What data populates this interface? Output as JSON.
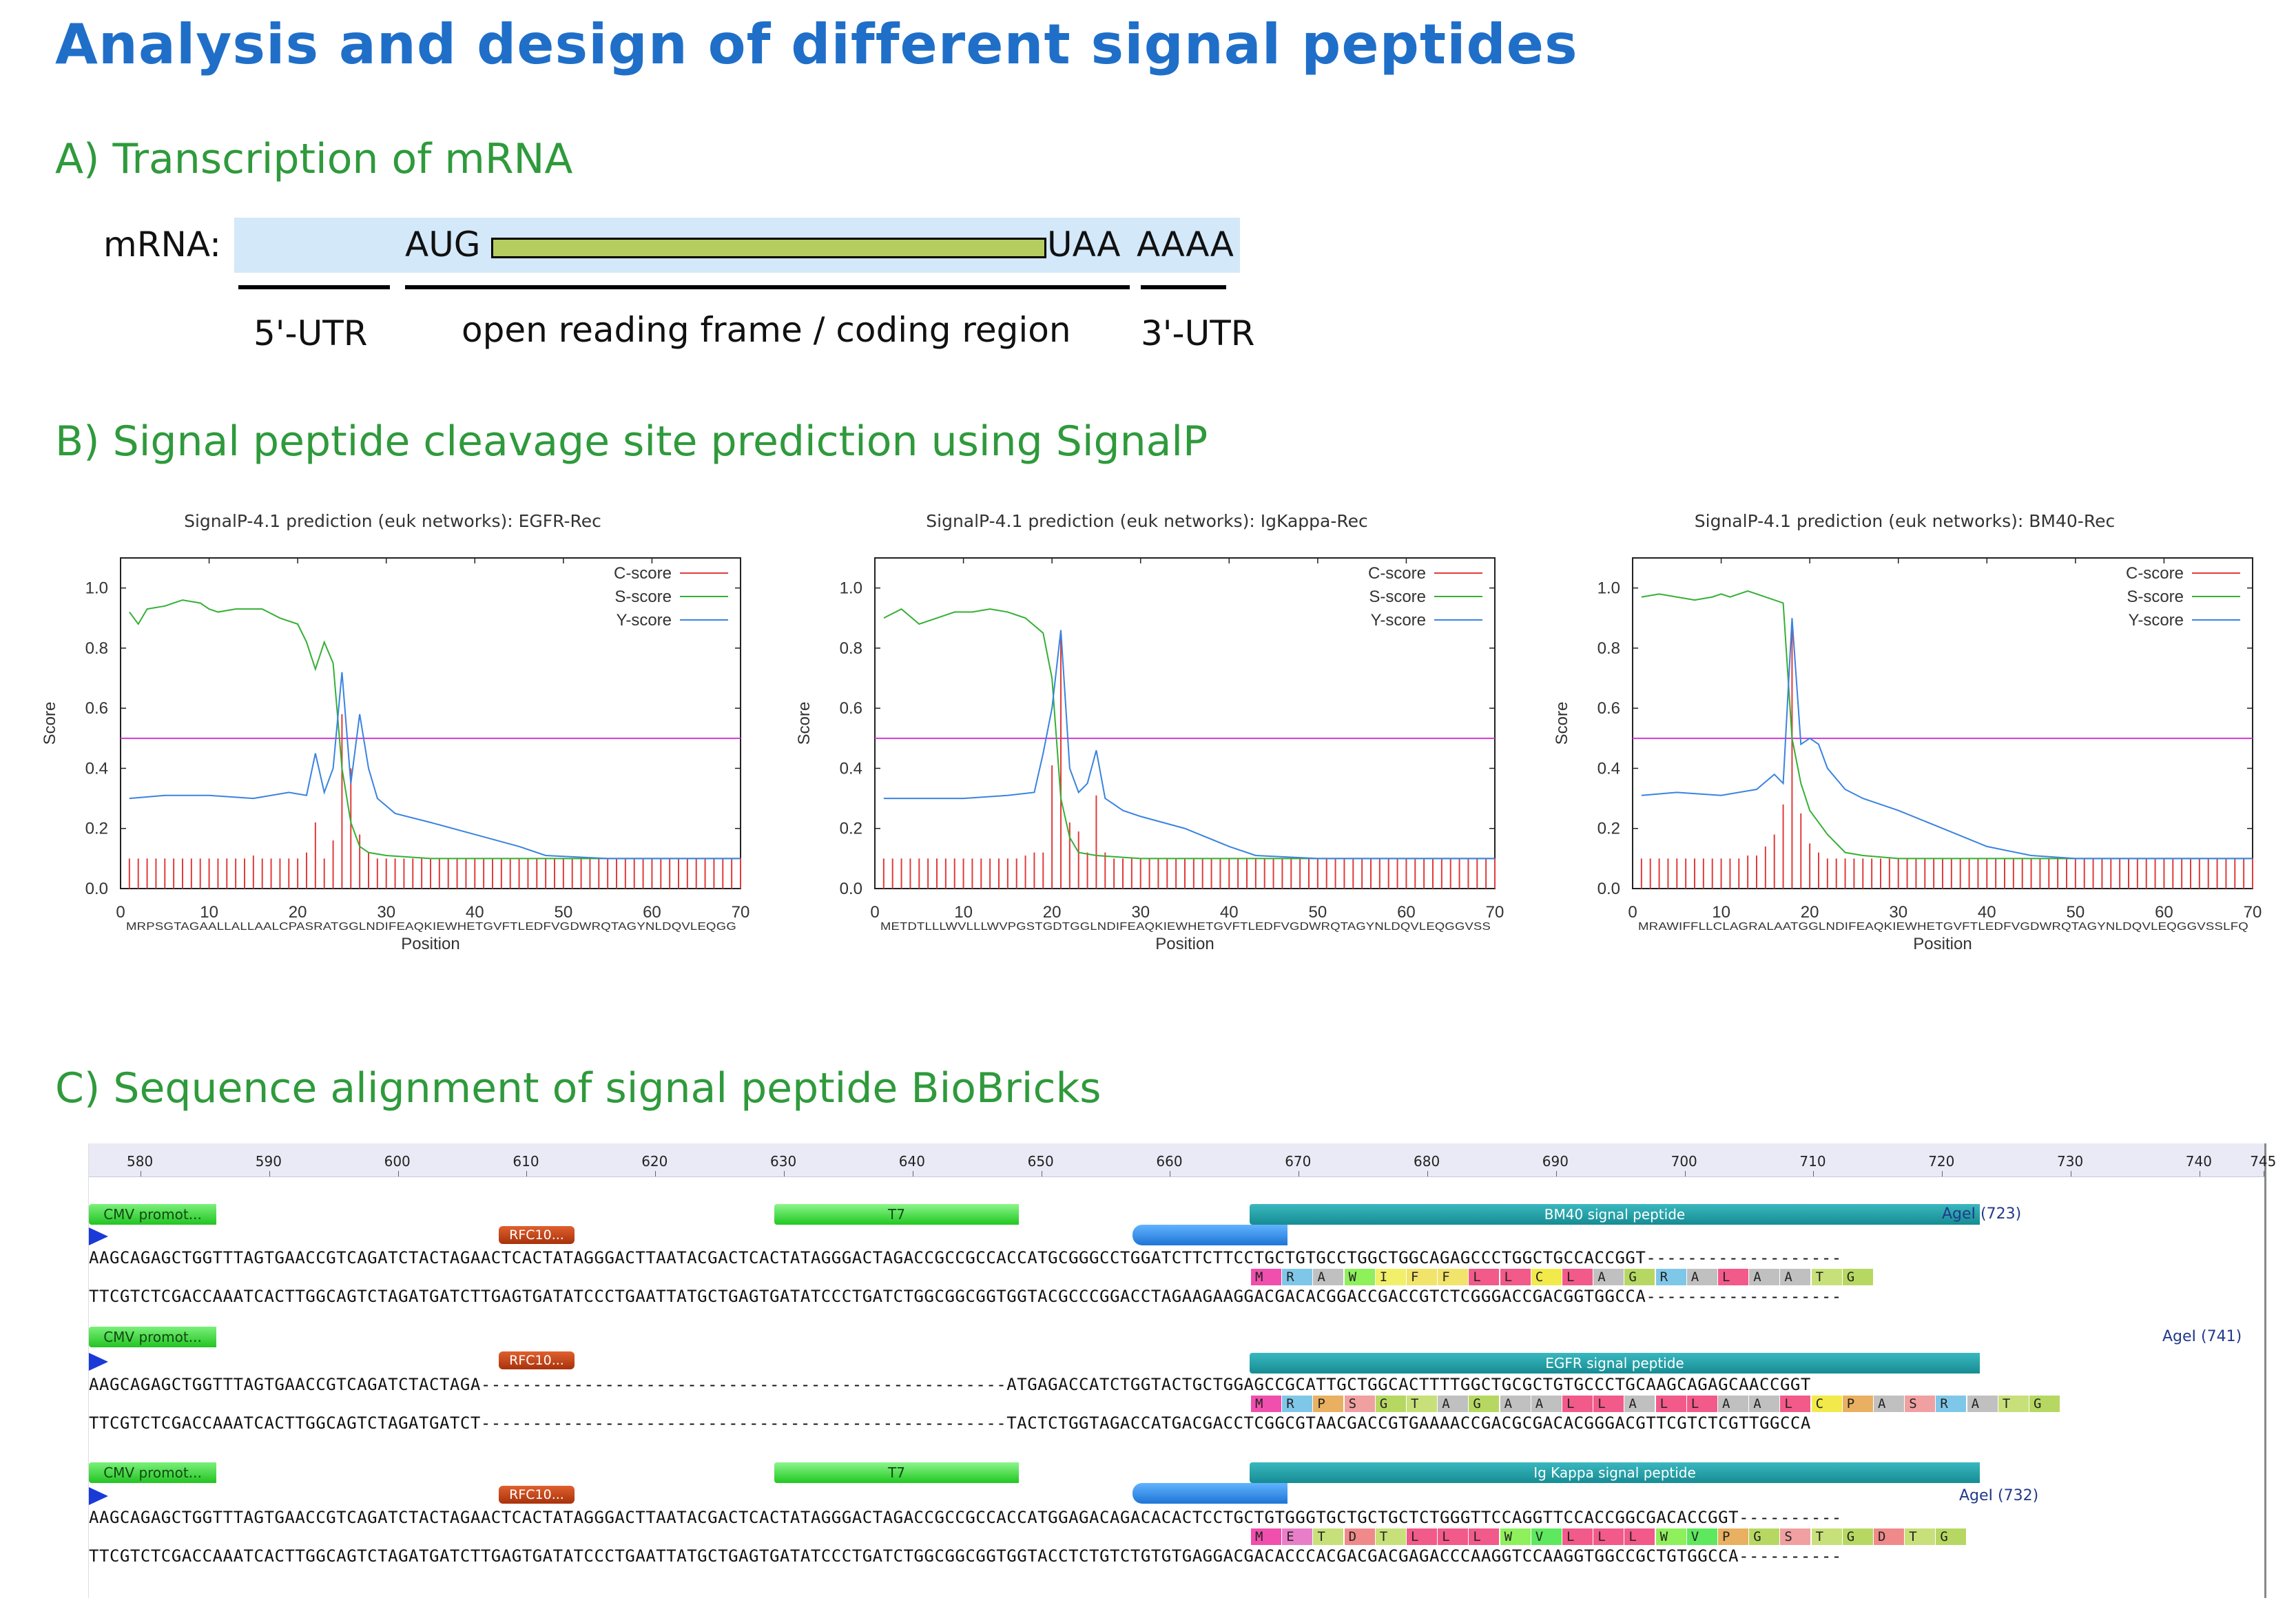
{
  "title": "Analysis and design of different signal peptides",
  "sectionA": {
    "title": "A) Transcription of mRNA",
    "mrna_label": "mRNA:",
    "start_codon": "AUG",
    "stop_codon": "UAA",
    "poly_a": "AAAA",
    "utr5": "5'-UTR",
    "orf": "open reading frame / coding region",
    "utr3": "3'-UTR"
  },
  "sectionB": {
    "title": "B) Signal peptide cleavage site prediction using SignalP"
  },
  "chart_data": [
    {
      "type": "line",
      "title": "SignalP-4.1 prediction (euk networks): EGFR-Rec",
      "xlabel": "Position",
      "ylabel": "Score",
      "xlim": [
        0,
        70
      ],
      "ylim": [
        0,
        1.1
      ],
      "xticks": [
        0,
        10,
        20,
        30,
        40,
        50,
        60,
        70
      ],
      "yticks": [
        "0.0",
        "0.2",
        "0.4",
        "0.6",
        "0.8",
        "1.0"
      ],
      "threshold": 0.5,
      "legend": [
        "C-score",
        "S-score",
        "Y-score"
      ],
      "legend_position": "top-right",
      "sequence": "MRPSGTAGAALLALLAALCPASRATGGLNDIFEAQKIEWHETGVFTLEDFVGDWRQTAGYNLDQVLEQGG",
      "series": [
        {
          "name": "C-score",
          "color": "#e23b3b",
          "bars": [
            0.1,
            0.1,
            0.1,
            0.1,
            0.1,
            0.1,
            0.1,
            0.1,
            0.1,
            0.1,
            0.1,
            0.1,
            0.1,
            0.1,
            0.11,
            0.1,
            0.1,
            0.1,
            0.1,
            0.1,
            0.12,
            0.22,
            0.1,
            0.16,
            0.58,
            0.4,
            0.18,
            0.12,
            0.1,
            0.1,
            0.1,
            0.1,
            0.1,
            0.1,
            0.1,
            0.1,
            0.1,
            0.1,
            0.1,
            0.1,
            0.1,
            0.1,
            0.1,
            0.1,
            0.1,
            0.1,
            0.1,
            0.1,
            0.1,
            0.1,
            0.1,
            0.1,
            0.1,
            0.1,
            0.1,
            0.1,
            0.1,
            0.1,
            0.1,
            0.1,
            0.1,
            0.1,
            0.1,
            0.1,
            0.1,
            0.1,
            0.1,
            0.1,
            0.1,
            0.1
          ]
        },
        {
          "name": "S-score",
          "color": "#35b035",
          "values": [
            [
              1,
              0.92
            ],
            [
              2,
              0.88
            ],
            [
              3,
              0.93
            ],
            [
              5,
              0.94
            ],
            [
              7,
              0.96
            ],
            [
              9,
              0.95
            ],
            [
              10,
              0.93
            ],
            [
              11,
              0.92
            ],
            [
              13,
              0.93
            ],
            [
              15,
              0.93
            ],
            [
              16,
              0.93
            ],
            [
              18,
              0.9
            ],
            [
              20,
              0.88
            ],
            [
              21,
              0.82
            ],
            [
              22,
              0.73
            ],
            [
              23,
              0.82
            ],
            [
              24,
              0.75
            ],
            [
              25,
              0.4
            ],
            [
              26,
              0.22
            ],
            [
              27,
              0.14
            ],
            [
              28,
              0.12
            ],
            [
              30,
              0.11
            ],
            [
              35,
              0.1
            ],
            [
              40,
              0.1
            ],
            [
              50,
              0.1
            ],
            [
              60,
              0.1
            ],
            [
              70,
              0.1
            ]
          ]
        },
        {
          "name": "Y-score",
          "color": "#3a83e0",
          "values": [
            [
              1,
              0.3
            ],
            [
              5,
              0.31
            ],
            [
              10,
              0.31
            ],
            [
              15,
              0.3
            ],
            [
              19,
              0.32
            ],
            [
              21,
              0.31
            ],
            [
              22,
              0.45
            ],
            [
              23,
              0.32
            ],
            [
              24,
              0.4
            ],
            [
              25,
              0.72
            ],
            [
              26,
              0.35
            ],
            [
              27,
              0.58
            ],
            [
              28,
              0.4
            ],
            [
              29,
              0.3
            ],
            [
              31,
              0.25
            ],
            [
              35,
              0.22
            ],
            [
              40,
              0.18
            ],
            [
              45,
              0.14
            ],
            [
              48,
              0.11
            ],
            [
              55,
              0.1
            ],
            [
              70,
              0.1
            ]
          ]
        }
      ]
    },
    {
      "type": "line",
      "title": "SignalP-4.1 prediction (euk networks): IgKappa-Rec",
      "xlabel": "Position",
      "ylabel": "Score",
      "xlim": [
        0,
        70
      ],
      "ylim": [
        0,
        1.1
      ],
      "xticks": [
        0,
        10,
        20,
        30,
        40,
        50,
        60,
        70
      ],
      "yticks": [
        "0.0",
        "0.2",
        "0.4",
        "0.6",
        "0.8",
        "1.0"
      ],
      "threshold": 0.5,
      "legend": [
        "C-score",
        "S-score",
        "Y-score"
      ],
      "legend_position": "top-right",
      "sequence": "METDTLLLWVLLLWVPGSTGDTGGLNDIFEAQKIEWHETGVFTLEDFVGDWRQTAGYNLDQVLEQGGVSS",
      "series": [
        {
          "name": "C-score",
          "color": "#e23b3b",
          "bars": [
            0.1,
            0.1,
            0.1,
            0.1,
            0.1,
            0.1,
            0.1,
            0.1,
            0.1,
            0.1,
            0.1,
            0.1,
            0.1,
            0.1,
            0.1,
            0.1,
            0.11,
            0.12,
            0.12,
            0.41,
            0.85,
            0.22,
            0.19,
            0.12,
            0.31,
            0.12,
            0.1,
            0.1,
            0.1,
            0.1,
            0.1,
            0.1,
            0.1,
            0.1,
            0.1,
            0.1,
            0.1,
            0.1,
            0.1,
            0.1,
            0.1,
            0.1,
            0.1,
            0.1,
            0.1,
            0.1,
            0.1,
            0.1,
            0.1,
            0.1,
            0.1,
            0.1,
            0.1,
            0.1,
            0.1,
            0.1,
            0.1,
            0.1,
            0.1,
            0.1,
            0.1,
            0.1,
            0.1,
            0.1,
            0.1,
            0.1,
            0.1,
            0.1,
            0.1,
            0.1
          ]
        },
        {
          "name": "S-score",
          "color": "#35b035",
          "values": [
            [
              1,
              0.9
            ],
            [
              3,
              0.93
            ],
            [
              5,
              0.88
            ],
            [
              7,
              0.9
            ],
            [
              9,
              0.92
            ],
            [
              11,
              0.92
            ],
            [
              13,
              0.93
            ],
            [
              15,
              0.92
            ],
            [
              17,
              0.9
            ],
            [
              19,
              0.85
            ],
            [
              20,
              0.7
            ],
            [
              21,
              0.3
            ],
            [
              22,
              0.17
            ],
            [
              23,
              0.12
            ],
            [
              25,
              0.11
            ],
            [
              30,
              0.1
            ],
            [
              40,
              0.1
            ],
            [
              70,
              0.1
            ]
          ]
        },
        {
          "name": "Y-score",
          "color": "#3a83e0",
          "values": [
            [
              1,
              0.3
            ],
            [
              5,
              0.3
            ],
            [
              10,
              0.3
            ],
            [
              15,
              0.31
            ],
            [
              18,
              0.32
            ],
            [
              19,
              0.45
            ],
            [
              20,
              0.6
            ],
            [
              21,
              0.86
            ],
            [
              22,
              0.4
            ],
            [
              23,
              0.32
            ],
            [
              24,
              0.35
            ],
            [
              25,
              0.46
            ],
            [
              26,
              0.3
            ],
            [
              28,
              0.26
            ],
            [
              30,
              0.24
            ],
            [
              35,
              0.2
            ],
            [
              40,
              0.14
            ],
            [
              43,
              0.11
            ],
            [
              50,
              0.1
            ],
            [
              70,
              0.1
            ]
          ]
        }
      ]
    },
    {
      "type": "line",
      "title": "SignalP-4.1 prediction (euk networks): BM40-Rec",
      "xlabel": "Position",
      "ylabel": "Score",
      "xlim": [
        0,
        70
      ],
      "ylim": [
        0,
        1.1
      ],
      "xticks": [
        0,
        10,
        20,
        30,
        40,
        50,
        60,
        70
      ],
      "yticks": [
        "0.0",
        "0.2",
        "0.4",
        "0.6",
        "0.8",
        "1.0"
      ],
      "threshold": 0.5,
      "legend": [
        "C-score",
        "S-score",
        "Y-score"
      ],
      "legend_position": "top-right",
      "sequence": "MRAWIFFLLCLAGRALAATGGLNDIFEAQKIEWHETGVFTLEDFVGDWRQTAGYNLDQVLEQGGVSSLFQ",
      "series": [
        {
          "name": "C-score",
          "color": "#e23b3b",
          "bars": [
            0.1,
            0.1,
            0.1,
            0.1,
            0.1,
            0.1,
            0.1,
            0.1,
            0.1,
            0.1,
            0.1,
            0.1,
            0.11,
            0.11,
            0.14,
            0.18,
            0.28,
            0.88,
            0.25,
            0.15,
            0.12,
            0.1,
            0.1,
            0.1,
            0.1,
            0.1,
            0.1,
            0.1,
            0.1,
            0.1,
            0.1,
            0.1,
            0.1,
            0.1,
            0.1,
            0.1,
            0.1,
            0.1,
            0.1,
            0.1,
            0.1,
            0.1,
            0.1,
            0.1,
            0.1,
            0.1,
            0.1,
            0.1,
            0.1,
            0.1,
            0.1,
            0.1,
            0.1,
            0.1,
            0.1,
            0.1,
            0.1,
            0.1,
            0.1,
            0.1,
            0.1,
            0.1,
            0.1,
            0.1,
            0.1,
            0.1,
            0.1,
            0.1,
            0.1,
            0.1
          ]
        },
        {
          "name": "S-score",
          "color": "#35b035",
          "values": [
            [
              1,
              0.97
            ],
            [
              3,
              0.98
            ],
            [
              5,
              0.97
            ],
            [
              7,
              0.96
            ],
            [
              9,
              0.97
            ],
            [
              10,
              0.98
            ],
            [
              11,
              0.97
            ],
            [
              12,
              0.98
            ],
            [
              13,
              0.99
            ],
            [
              15,
              0.97
            ],
            [
              17,
              0.95
            ],
            [
              18,
              0.5
            ],
            [
              19,
              0.35
            ],
            [
              20,
              0.26
            ],
            [
              22,
              0.18
            ],
            [
              24,
              0.12
            ],
            [
              26,
              0.11
            ],
            [
              30,
              0.1
            ],
            [
              40,
              0.1
            ],
            [
              70,
              0.1
            ]
          ]
        },
        {
          "name": "Y-score",
          "color": "#3a83e0",
          "values": [
            [
              1,
              0.31
            ],
            [
              5,
              0.32
            ],
            [
              10,
              0.31
            ],
            [
              14,
              0.33
            ],
            [
              16,
              0.38
            ],
            [
              17,
              0.35
            ],
            [
              18,
              0.9
            ],
            [
              19,
              0.48
            ],
            [
              20,
              0.5
            ],
            [
              21,
              0.48
            ],
            [
              22,
              0.4
            ],
            [
              24,
              0.33
            ],
            [
              26,
              0.3
            ],
            [
              30,
              0.26
            ],
            [
              35,
              0.2
            ],
            [
              40,
              0.14
            ],
            [
              45,
              0.11
            ],
            [
              50,
              0.1
            ],
            [
              70,
              0.1
            ]
          ]
        }
      ]
    }
  ],
  "sectionC": {
    "title": "C) Sequence alignment of signal peptide BioBricks",
    "ruler": [
      "580",
      "590",
      "600",
      "610",
      "620",
      "630",
      "640",
      "650",
      "660",
      "670",
      "680",
      "690",
      "700",
      "710",
      "720",
      "730",
      "740",
      "745"
    ],
    "tracks": [
      {
        "cmv": "CMV promot...",
        "rfc": "RFC10...",
        "t7": "T7",
        "peptide": "BM40 signal peptide",
        "agel": "AgeI (723)",
        "top": "AAGCAGAGCTGGTTTAGTGAACCGTCAGATCTACTAGAACTCACTATAGGGACTTAATACGACTCACTATAGGGACTAGACCGCCGCCACCATGCGGGCCTGGATCTTCTTCCTGCTGTGCCTGGCTGGCAGAGCCCTGGCTGCCACCGGT-------------------",
        "aa": [
          "M",
          "R",
          "A",
          "W",
          "I",
          "F",
          "F",
          "L",
          "L",
          "C",
          "L",
          "A",
          "G",
          "R",
          "A",
          "L",
          "A",
          "A",
          "T",
          "G"
        ],
        "bottom": "TTCGTCTCGACCAAATCACTTGGCAGTCTAGATGATCTTGAGTGATATCCCTGAATTATGCTGAGTGATATCCCTGATCTGGCGGCGGTGGTACGCCCGGACCTAGAAGAAGGACGACACGGACCGACCGTCTCGGGACCGACGGTGGCCA-------------------"
      },
      {
        "cmv": "CMV promot...",
        "rfc": "RFC10...",
        "peptide": "EGFR signal peptide",
        "agel": "AgeI (741)",
        "top": "AAGCAGAGCTGGTTTAGTGAACCGTCAGATCTACTAGA---------------------------------------------------ATGAGACCATCTGGTACTGCTGGAGCCGCATTGCTGGCACTTTTGGCTGCGCTGTGCCCTGCAAGCAGAGCAACCGGT",
        "aa": [
          "M",
          "R",
          "P",
          "S",
          "G",
          "T",
          "A",
          "G",
          "A",
          "A",
          "L",
          "L",
          "A",
          "L",
          "L",
          "A",
          "A",
          "L",
          "C",
          "P",
          "A",
          "S",
          "R",
          "A",
          "T",
          "G"
        ],
        "bottom": "TTCGTCTCGACCAAATCACTTGGCAGTCTAGATGATCT---------------------------------------------------TACTCTGGTAGACCATGACGACCTCGGCGTAACGACCGTGAAAACCGACGCGACACGGGACGTTCGTCTCGTTGGCCA"
      },
      {
        "cmv": "CMV promot...",
        "rfc": "RFC10...",
        "t7": "T7",
        "peptide": "Ig Kappa signal peptide",
        "agel": "AgeI (732)",
        "top": "AAGCAGAGCTGGTTTAGTGAACCGTCAGATCTACTAGAACTCACTATAGGGACTTAATACGACTCACTATAGGGACTAGACCGCCGCCACCATGGAGACAGACACACTCCTGCTGTGGGTGCTGCTGCTCTGGGTTCCAGGTTCCACCGGCGACACCGGT----------",
        "aa": [
          "M",
          "E",
          "T",
          "D",
          "T",
          "L",
          "L",
          "L",
          "W",
          "V",
          "L",
          "L",
          "L",
          "W",
          "V",
          "P",
          "G",
          "S",
          "T",
          "G",
          "D",
          "T",
          "G"
        ],
        "bottom": "TTCGTCTCGACCAAATCACTTGGCAGTCTAGATGATCTTGAGTGATATCCCTGAATTATGCTGAGTGATATCCCTGATCTGGCGGCGGTGGTACCTCTGTCTGTGTGAGGACGACACCCACGACGACGAGACCCAAGGTCCAAGGTGGCCGCTGTGGCCA----------"
      }
    ]
  }
}
